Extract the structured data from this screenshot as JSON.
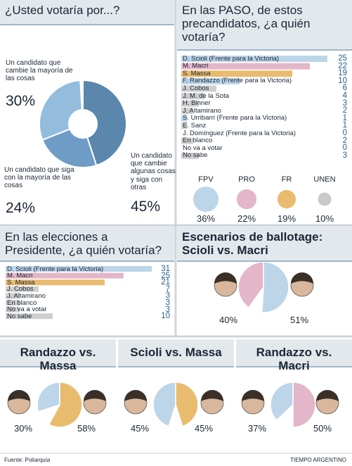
{
  "chart_data": [
    {
      "type": "donut",
      "title": "¿Usted votaría por...?",
      "categories": [
        "Un candidato que cambie algunas cosas y siga con otras",
        "Un candidato que siga con la mayoría de las cosas",
        "Un candidato que cambie la mayoría de las cosas"
      ],
      "values": [
        45,
        24,
        30
      ],
      "value_labels": [
        "45%",
        "24%",
        "30%"
      ],
      "colors": [
        "#5b87ad",
        "#6e9cc6",
        "#93bcdd"
      ]
    },
    {
      "type": "bar",
      "title": "En las PASO, de estos precandidatos, ¿a quién votaría?",
      "categories": [
        "D. Scioli (Frente para la Victoria)",
        "M. Macri",
        "S. Massa",
        "F. Randazzo (Frente para la Victoria)",
        "J. Cobos",
        "J. M. de la Sota",
        "H. Binner",
        "J. Altamirano",
        "S. Urribarri (Frente para la Victoria)",
        "E. Sanz",
        "J. Domínguez (Frente para la Victoria)",
        "En blanco",
        "No va a votar",
        "No sabe"
      ],
      "values": [
        25,
        22,
        19,
        10,
        6,
        4,
        3,
        2,
        1,
        1,
        0,
        2,
        0,
        3
      ],
      "colors": [
        "#bcd5e8",
        "#e3b6ca",
        "#e9bb6e",
        "#bcd5e8",
        "#cfcfcf",
        "#cfcfcf",
        "#cfcfcf",
        "#cfcfcf",
        "#bcd5e8",
        "#cfcfcf",
        "#bcd5e8",
        "#cfcfcf",
        "#cfcfcf",
        "#cfcfcf"
      ],
      "xlim": [
        0,
        25
      ]
    },
    {
      "type": "bubble",
      "categories": [
        "FPV",
        "PRO",
        "FR",
        "UNEN"
      ],
      "values": [
        36,
        22,
        19,
        10
      ],
      "value_labels": [
        "36%",
        "22%",
        "19%",
        "10%"
      ],
      "colors": [
        "#bcd5e8",
        "#e3b6ca",
        "#e9bb6e",
        "#c9c9c9"
      ]
    },
    {
      "type": "bar",
      "title": "En las elecciones a Presidente, ¿a quién votaría?",
      "categories": [
        "D. Scioli (Frente para la Victoria)",
        "M. Macri",
        "S. Massa",
        "J. Cobos",
        "J. Altamirano",
        "En blanco",
        "No va a votar",
        "No sabe"
      ],
      "values": [
        31,
        25,
        21,
        7,
        3,
        3,
        3,
        10
      ],
      "colors": [
        "#bcd5e8",
        "#e3b6ca",
        "#e9bb6e",
        "#cfcfcf",
        "#cfcfcf",
        "#cfcfcf",
        "#cfcfcf",
        "#cfcfcf"
      ],
      "xlim": [
        0,
        31
      ]
    },
    {
      "type": "pie",
      "title": "Escenarios de ballotage: Scioli vs. Macri",
      "values": [
        40,
        51
      ],
      "value_labels": [
        "40%",
        "51%"
      ],
      "colors": [
        "#e3b6ca",
        "#bcd5e8"
      ]
    },
    {
      "type": "pie",
      "title": "Randazzo vs. Massa",
      "values": [
        30,
        58
      ],
      "value_labels": [
        "30%",
        "58%"
      ],
      "colors": [
        "#bcd5e8",
        "#e9bb6e"
      ]
    },
    {
      "type": "pie",
      "title": "Scioli vs. Massa",
      "values": [
        45,
        45
      ],
      "value_labels": [
        "45%",
        "45%"
      ],
      "colors": [
        "#bcd5e8",
        "#e9bb6e"
      ]
    },
    {
      "type": "pie",
      "title": "Randazzo vs. Macri",
      "values": [
        37,
        50
      ],
      "value_labels": [
        "37%",
        "50%"
      ],
      "colors": [
        "#bcd5e8",
        "#e3b6ca"
      ]
    }
  ],
  "footer": {
    "source": "Fuente: Poliarquía",
    "brand": "TIEMPO ARGENTINO"
  }
}
